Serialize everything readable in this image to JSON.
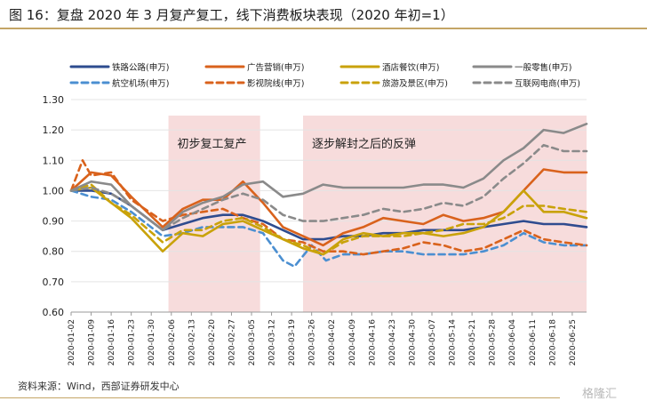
{
  "title": "图 16：复盘 2020 年 3 月复产复工，线下消费板块表现（2020 年初=1）",
  "source": "资料来源：Wind，西部证券研发中心",
  "watermark": "格隆汇",
  "chart_data": {
    "type": "line",
    "ylim": [
      0.6,
      1.3
    ],
    "yticks": [
      "0.60",
      "0.70",
      "0.80",
      "0.90",
      "1.00",
      "1.10",
      "1.20",
      "1.30"
    ],
    "date_range": [
      "2020-01-02",
      "2020-06-30"
    ],
    "x_tick_labels": [
      "2020-01-02",
      "2020-01-09",
      "2020-01-16",
      "2020-01-23",
      "2020-01-30",
      "2020-02-06",
      "2020-02-13",
      "2020-02-20",
      "2020-02-27",
      "2020-03-05",
      "2020-03-12",
      "2020-03-19",
      "2020-03-26",
      "2020-04-02",
      "2020-04-09",
      "2020-04-16",
      "2020-04-23",
      "2020-04-30",
      "2020-05-07",
      "2020-05-14",
      "2020-05-21",
      "2020-05-28",
      "2020-06-04",
      "2020-06-11",
      "2020-06-18",
      "2020-06-25"
    ],
    "shaded_regions": [
      {
        "label": "初步复工复产",
        "start": "2020-02-05",
        "end": "2020-03-08"
      },
      {
        "label": "逐步解封之后的反弹",
        "start": "2020-03-23",
        "end": "2020-06-30"
      }
    ],
    "series": [
      {
        "name": "铁路公路(申万)",
        "color": "#2e4c8f",
        "dash": "solid",
        "values": [
          [
            "2020-01-02",
            1.0
          ],
          [
            "2020-01-09",
            1.0
          ],
          [
            "2020-01-16",
            0.99
          ],
          [
            "2020-01-23",
            0.95
          ],
          [
            "2020-02-03",
            0.87
          ],
          [
            "2020-02-10",
            0.89
          ],
          [
            "2020-02-17",
            0.91
          ],
          [
            "2020-02-24",
            0.92
          ],
          [
            "2020-03-02",
            0.92
          ],
          [
            "2020-03-09",
            0.9
          ],
          [
            "2020-03-16",
            0.87
          ],
          [
            "2020-03-23",
            0.84
          ],
          [
            "2020-03-30",
            0.84
          ],
          [
            "2020-04-06",
            0.85
          ],
          [
            "2020-04-13",
            0.85
          ],
          [
            "2020-04-20",
            0.86
          ],
          [
            "2020-04-27",
            0.86
          ],
          [
            "2020-05-04",
            0.87
          ],
          [
            "2020-05-11",
            0.87
          ],
          [
            "2020-05-18",
            0.87
          ],
          [
            "2020-05-25",
            0.88
          ],
          [
            "2020-06-01",
            0.89
          ],
          [
            "2020-06-08",
            0.9
          ],
          [
            "2020-06-15",
            0.89
          ],
          [
            "2020-06-22",
            0.89
          ],
          [
            "2020-06-30",
            0.88
          ]
        ]
      },
      {
        "name": "航空机场(申万)",
        "color": "#4b8fd1",
        "dash": "dash",
        "values": [
          [
            "2020-01-02",
            1.0
          ],
          [
            "2020-01-09",
            0.98
          ],
          [
            "2020-01-16",
            0.97
          ],
          [
            "2020-01-23",
            0.93
          ],
          [
            "2020-02-03",
            0.85
          ],
          [
            "2020-02-10",
            0.86
          ],
          [
            "2020-02-17",
            0.88
          ],
          [
            "2020-02-24",
            0.88
          ],
          [
            "2020-03-02",
            0.88
          ],
          [
            "2020-03-09",
            0.86
          ],
          [
            "2020-03-16",
            0.77
          ],
          [
            "2020-03-20",
            0.75
          ],
          [
            "2020-03-26",
            0.82
          ],
          [
            "2020-03-31",
            0.77
          ],
          [
            "2020-04-06",
            0.79
          ],
          [
            "2020-04-13",
            0.79
          ],
          [
            "2020-04-20",
            0.8
          ],
          [
            "2020-04-27",
            0.8
          ],
          [
            "2020-05-04",
            0.79
          ],
          [
            "2020-05-11",
            0.79
          ],
          [
            "2020-05-18",
            0.79
          ],
          [
            "2020-05-25",
            0.8
          ],
          [
            "2020-06-01",
            0.82
          ],
          [
            "2020-06-08",
            0.86
          ],
          [
            "2020-06-15",
            0.83
          ],
          [
            "2020-06-22",
            0.82
          ],
          [
            "2020-06-30",
            0.82
          ]
        ]
      },
      {
        "name": "广告营销(申万)",
        "color": "#d9621c",
        "dash": "solid",
        "values": [
          [
            "2020-01-02",
            1.0
          ],
          [
            "2020-01-09",
            1.06
          ],
          [
            "2020-01-16",
            1.05
          ],
          [
            "2020-01-23",
            0.98
          ],
          [
            "2020-02-03",
            0.88
          ],
          [
            "2020-02-10",
            0.94
          ],
          [
            "2020-02-17",
            0.97
          ],
          [
            "2020-02-24",
            0.97
          ],
          [
            "2020-03-02",
            1.03
          ],
          [
            "2020-03-09",
            0.96
          ],
          [
            "2020-03-16",
            0.88
          ],
          [
            "2020-03-23",
            0.85
          ],
          [
            "2020-03-30",
            0.82
          ],
          [
            "2020-04-06",
            0.86
          ],
          [
            "2020-04-13",
            0.88
          ],
          [
            "2020-04-20",
            0.91
          ],
          [
            "2020-04-27",
            0.9
          ],
          [
            "2020-05-04",
            0.89
          ],
          [
            "2020-05-11",
            0.92
          ],
          [
            "2020-05-18",
            0.9
          ],
          [
            "2020-05-25",
            0.91
          ],
          [
            "2020-06-01",
            0.93
          ],
          [
            "2020-06-08",
            1.0
          ],
          [
            "2020-06-15",
            1.07
          ],
          [
            "2020-06-22",
            1.06
          ],
          [
            "2020-06-30",
            1.06
          ]
        ]
      },
      {
        "name": "影视院线(申万)",
        "color": "#d9621c",
        "dash": "dash",
        "values": [
          [
            "2020-01-02",
            1.0
          ],
          [
            "2020-01-06",
            1.1
          ],
          [
            "2020-01-09",
            1.05
          ],
          [
            "2020-01-16",
            1.06
          ],
          [
            "2020-01-23",
            0.97
          ],
          [
            "2020-02-03",
            0.9
          ],
          [
            "2020-02-10",
            0.92
          ],
          [
            "2020-02-17",
            0.93
          ],
          [
            "2020-02-24",
            0.94
          ],
          [
            "2020-03-02",
            0.91
          ],
          [
            "2020-03-09",
            0.89
          ],
          [
            "2020-03-16",
            0.84
          ],
          [
            "2020-03-23",
            0.83
          ],
          [
            "2020-03-30",
            0.8
          ],
          [
            "2020-04-06",
            0.8
          ],
          [
            "2020-04-13",
            0.79
          ],
          [
            "2020-04-20",
            0.8
          ],
          [
            "2020-04-27",
            0.81
          ],
          [
            "2020-05-04",
            0.83
          ],
          [
            "2020-05-11",
            0.82
          ],
          [
            "2020-05-18",
            0.8
          ],
          [
            "2020-05-25",
            0.81
          ],
          [
            "2020-06-01",
            0.84
          ],
          [
            "2020-06-08",
            0.87
          ],
          [
            "2020-06-15",
            0.84
          ],
          [
            "2020-06-22",
            0.83
          ],
          [
            "2020-06-30",
            0.82
          ]
        ]
      },
      {
        "name": "酒店餐饮(申万)",
        "color": "#c9a20a",
        "dash": "solid",
        "values": [
          [
            "2020-01-02",
            1.0
          ],
          [
            "2020-01-09",
            1.01
          ],
          [
            "2020-01-16",
            0.96
          ],
          [
            "2020-01-23",
            0.91
          ],
          [
            "2020-02-03",
            0.8
          ],
          [
            "2020-02-10",
            0.86
          ],
          [
            "2020-02-17",
            0.85
          ],
          [
            "2020-02-24",
            0.89
          ],
          [
            "2020-03-02",
            0.9
          ],
          [
            "2020-03-09",
            0.87
          ],
          [
            "2020-03-16",
            0.84
          ],
          [
            "2020-03-23",
            0.81
          ],
          [
            "2020-03-30",
            0.79
          ],
          [
            "2020-04-06",
            0.84
          ],
          [
            "2020-04-13",
            0.86
          ],
          [
            "2020-04-20",
            0.85
          ],
          [
            "2020-04-27",
            0.86
          ],
          [
            "2020-05-04",
            0.86
          ],
          [
            "2020-05-11",
            0.85
          ],
          [
            "2020-05-18",
            0.86
          ],
          [
            "2020-05-25",
            0.88
          ],
          [
            "2020-06-01",
            0.93
          ],
          [
            "2020-06-08",
            1.0
          ],
          [
            "2020-06-15",
            0.93
          ],
          [
            "2020-06-22",
            0.93
          ],
          [
            "2020-06-30",
            0.91
          ]
        ]
      },
      {
        "name": "旅游及景区(申万)",
        "color": "#c9a20a",
        "dash": "dash",
        "values": [
          [
            "2020-01-02",
            1.0
          ],
          [
            "2020-01-09",
            1.02
          ],
          [
            "2020-01-16",
            0.96
          ],
          [
            "2020-01-23",
            0.92
          ],
          [
            "2020-02-03",
            0.83
          ],
          [
            "2020-02-10",
            0.87
          ],
          [
            "2020-02-17",
            0.87
          ],
          [
            "2020-02-24",
            0.9
          ],
          [
            "2020-03-02",
            0.91
          ],
          [
            "2020-03-09",
            0.88
          ],
          [
            "2020-03-16",
            0.84
          ],
          [
            "2020-03-23",
            0.82
          ],
          [
            "2020-03-30",
            0.79
          ],
          [
            "2020-04-06",
            0.83
          ],
          [
            "2020-04-13",
            0.85
          ],
          [
            "2020-04-20",
            0.85
          ],
          [
            "2020-04-27",
            0.85
          ],
          [
            "2020-05-04",
            0.86
          ],
          [
            "2020-05-11",
            0.87
          ],
          [
            "2020-05-18",
            0.89
          ],
          [
            "2020-05-25",
            0.89
          ],
          [
            "2020-06-01",
            0.91
          ],
          [
            "2020-06-08",
            0.95
          ],
          [
            "2020-06-15",
            0.95
          ],
          [
            "2020-06-22",
            0.94
          ],
          [
            "2020-06-30",
            0.93
          ]
        ]
      },
      {
        "name": "一般零售(申万)",
        "color": "#8a8a8a",
        "dash": "solid",
        "values": [
          [
            "2020-01-02",
            1.0
          ],
          [
            "2020-01-09",
            1.03
          ],
          [
            "2020-01-16",
            1.02
          ],
          [
            "2020-01-23",
            0.95
          ],
          [
            "2020-02-03",
            0.87
          ],
          [
            "2020-02-10",
            0.93
          ],
          [
            "2020-02-17",
            0.96
          ],
          [
            "2020-02-24",
            0.98
          ],
          [
            "2020-03-02",
            1.02
          ],
          [
            "2020-03-09",
            1.03
          ],
          [
            "2020-03-16",
            0.98
          ],
          [
            "2020-03-23",
            0.99
          ],
          [
            "2020-03-30",
            1.02
          ],
          [
            "2020-04-06",
            1.01
          ],
          [
            "2020-04-13",
            1.01
          ],
          [
            "2020-04-20",
            1.01
          ],
          [
            "2020-04-27",
            1.01
          ],
          [
            "2020-05-04",
            1.02
          ],
          [
            "2020-05-11",
            1.02
          ],
          [
            "2020-05-18",
            1.01
          ],
          [
            "2020-05-25",
            1.04
          ],
          [
            "2020-06-01",
            1.1
          ],
          [
            "2020-06-08",
            1.14
          ],
          [
            "2020-06-15",
            1.2
          ],
          [
            "2020-06-22",
            1.19
          ],
          [
            "2020-06-30",
            1.22
          ]
        ]
      },
      {
        "name": "互联网电商(申万)",
        "color": "#8a8a8a",
        "dash": "dash",
        "values": [
          [
            "2020-01-02",
            1.0
          ],
          [
            "2020-01-09",
            1.01
          ],
          [
            "2020-01-16",
            0.99
          ],
          [
            "2020-01-23",
            0.95
          ],
          [
            "2020-02-03",
            0.87
          ],
          [
            "2020-02-10",
            0.91
          ],
          [
            "2020-02-17",
            0.94
          ],
          [
            "2020-02-24",
            0.97
          ],
          [
            "2020-03-02",
            0.99
          ],
          [
            "2020-03-09",
            0.97
          ],
          [
            "2020-03-16",
            0.92
          ],
          [
            "2020-03-23",
            0.9
          ],
          [
            "2020-03-30",
            0.9
          ],
          [
            "2020-04-06",
            0.91
          ],
          [
            "2020-04-13",
            0.92
          ],
          [
            "2020-04-20",
            0.94
          ],
          [
            "2020-04-27",
            0.93
          ],
          [
            "2020-05-04",
            0.94
          ],
          [
            "2020-05-11",
            0.96
          ],
          [
            "2020-05-18",
            0.95
          ],
          [
            "2020-05-25",
            0.98
          ],
          [
            "2020-06-01",
            1.04
          ],
          [
            "2020-06-08",
            1.09
          ],
          [
            "2020-06-15",
            1.15
          ],
          [
            "2020-06-22",
            1.13
          ],
          [
            "2020-06-30",
            1.13
          ]
        ]
      }
    ]
  }
}
